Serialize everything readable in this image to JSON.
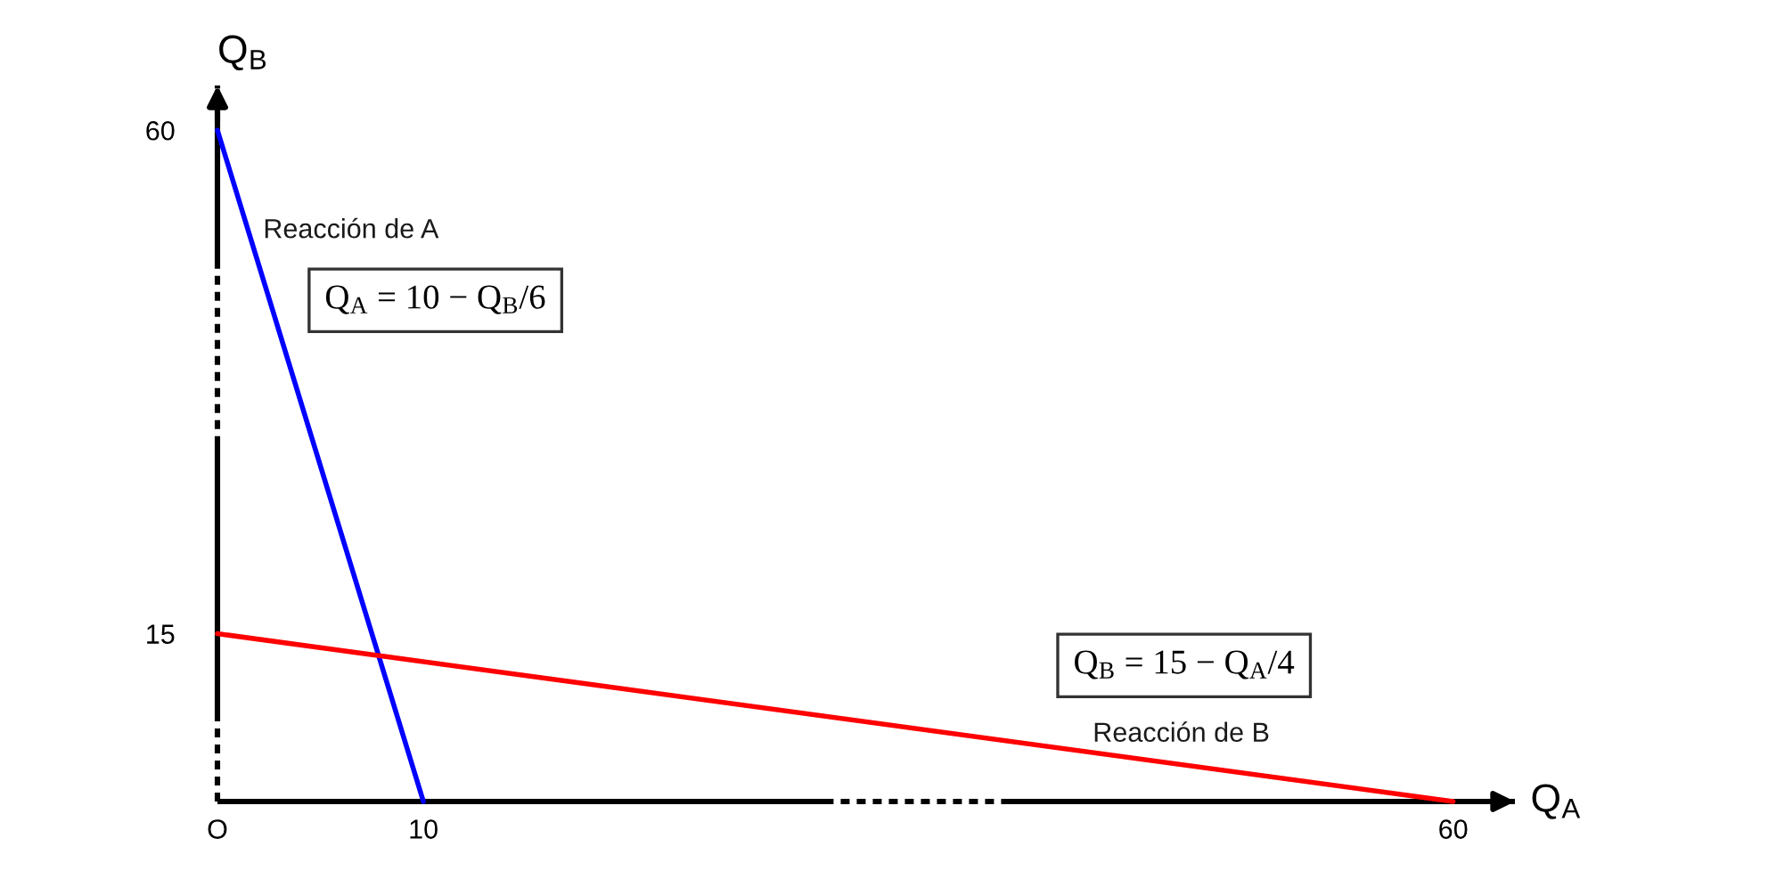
{
  "chart_data": {
    "type": "line",
    "xlabel": "Q$_{A}$",
    "ylabel": "Q$_{B}$",
    "xlim": [
      0,
      63
    ],
    "ylim": [
      0,
      64
    ],
    "xticks": [
      {
        "value": 0,
        "label": "O"
      },
      10,
      60
    ],
    "yticks": [
      15,
      60
    ],
    "series": [
      {
        "name": "Reacción de A",
        "color": "#0000ff",
        "x": [
          0,
          10
        ],
        "values": [
          60,
          0
        ]
      },
      {
        "name": "Reacción de B",
        "color": "#ff0000",
        "x": [
          0,
          60
        ],
        "values": [
          15,
          0
        ]
      }
    ],
    "annotations": [
      "Q$_{A}$ = 10 − Q$_{B}$/6",
      "Q$_{B}$ = 15 − Q$_{A}$/4"
    ],
    "legend": false,
    "marker": "none",
    "line_style": "solid"
  }
}
